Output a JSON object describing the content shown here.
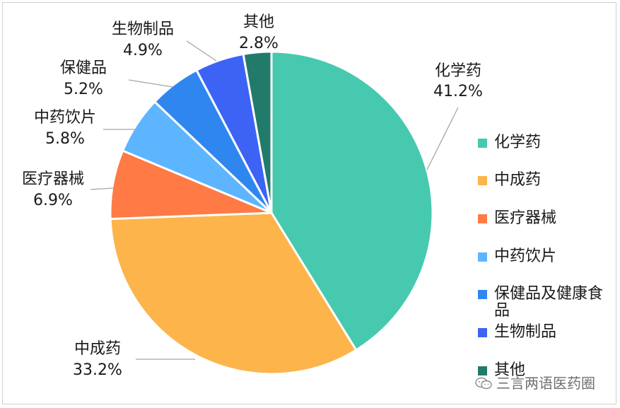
{
  "chart_data": {
    "type": "pie",
    "slices": [
      {
        "label": "化学药",
        "value": 41.2,
        "value_label": "41.2%",
        "legend": "化学药",
        "color": "#47C9AF"
      },
      {
        "label": "中成药",
        "value": 33.2,
        "value_label": "33.2%",
        "legend": "中成药",
        "color": "#FDB44B"
      },
      {
        "label": "医疗器械",
        "value": 6.9,
        "value_label": "6.9%",
        "legend": "医疗器械",
        "color": "#FF7A45"
      },
      {
        "label": "中药饮片",
        "value": 5.8,
        "value_label": "5.8%",
        "legend": "中药饮片",
        "color": "#5EB5FF"
      },
      {
        "label": "保健品",
        "value": 5.2,
        "value_label": "5.2%",
        "legend": "保健品及健康食品",
        "color": "#2F86EF"
      },
      {
        "label": "生物制品",
        "value": 4.9,
        "value_label": "4.9%",
        "legend": "生物制品",
        "color": "#3D63F5"
      },
      {
        "label": "其他",
        "value": 2.8,
        "value_label": "2.8%",
        "legend": "其他",
        "color": "#227A6B"
      }
    ],
    "legend_position": "right"
  },
  "watermark": {
    "text": "三言两语医药圈",
    "icon": "wechat-icon"
  }
}
